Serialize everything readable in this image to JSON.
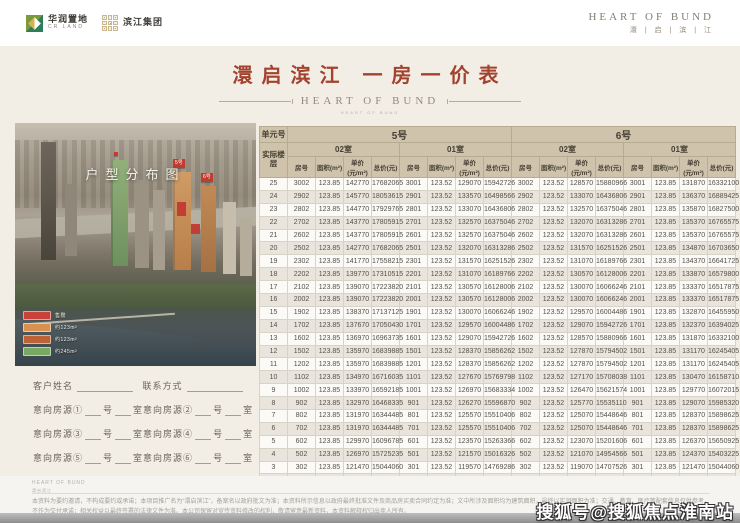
{
  "header": {
    "cr_logo": {
      "title": "华润置地",
      "subtitle": "CR LAND"
    },
    "partner_logo": {
      "title": "滨江集团"
    },
    "brand": {
      "en": "HEART OF BUND",
      "cn": "澴 | 启 | 滨 | 江"
    }
  },
  "title": "澴启滨江 一房一价表",
  "subtitle_en": "HEART OF BUND",
  "photo": {
    "overlay_title": "户型分布图",
    "badges": [
      "5号",
      "6号"
    ],
    "legend": [
      {
        "color": "#c8423a",
        "label": "售罄"
      },
      {
        "color": "#d9914f",
        "label": "约123m²"
      },
      {
        "color": "#bc6234",
        "label": "约123m²"
      },
      {
        "color": "#79a862",
        "label": "约245m²"
      }
    ]
  },
  "form": {
    "name_label": "客户姓名",
    "contact_label": "联系方式",
    "intent_labels": [
      "意向房源①",
      "意向房源②",
      "意向房源③",
      "意向房源④",
      "意向房源⑤",
      "意向房源⑥"
    ],
    "unit_suffix": "号",
    "room_suffix": "室",
    "consultant_label": "置业顾问"
  },
  "table": {
    "corner": "单元号",
    "floor_header": "实际楼层",
    "buildings": [
      "5号",
      "6号"
    ],
    "units": [
      "02室",
      "01室",
      "02室",
      "01室"
    ],
    "cols": [
      "房号",
      "面积(m²)",
      "单价(元/m²)",
      "总价(元)"
    ],
    "rows": [
      {
        "floor": "25",
        "cells": [
          "3002",
          "123.85",
          "142770",
          "17682065",
          "3001",
          "123.52",
          "129070",
          "15942726",
          "3002",
          "123.52",
          "128570",
          "15880966",
          "3001",
          "123.85",
          "131870",
          "16332100"
        ]
      },
      {
        "floor": "24",
        "cells": [
          "2902",
          "123.85",
          "145770",
          "18053615",
          "2901",
          "123.52",
          "133570",
          "16498566",
          "2902",
          "123.52",
          "133070",
          "16436806",
          "2901",
          "123.85",
          "136370",
          "16889425"
        ]
      },
      {
        "floor": "23",
        "cells": [
          "2802",
          "123.85",
          "144770",
          "17929765",
          "2801",
          "123.52",
          "133070",
          "16436806",
          "2802",
          "123.52",
          "132570",
          "16375046",
          "2801",
          "123.85",
          "135870",
          "16827500"
        ]
      },
      {
        "floor": "22",
        "cells": [
          "2702",
          "123.85",
          "143770",
          "17805915",
          "2701",
          "123.52",
          "132570",
          "16375046",
          "2702",
          "123.52",
          "132070",
          "16313286",
          "2701",
          "123.85",
          "135370",
          "16765575"
        ]
      },
      {
        "floor": "21",
        "cells": [
          "2602",
          "123.85",
          "143770",
          "17805915",
          "2601",
          "123.52",
          "132570",
          "16375046",
          "2602",
          "123.52",
          "132070",
          "16313286",
          "2601",
          "123.85",
          "135370",
          "16765575"
        ]
      },
      {
        "floor": "20",
        "cells": [
          "2502",
          "123.85",
          "142770",
          "17682065",
          "2501",
          "123.52",
          "132070",
          "16313286",
          "2502",
          "123.52",
          "131570",
          "16251526",
          "2501",
          "123.85",
          "134870",
          "16703650"
        ]
      },
      {
        "floor": "19",
        "cells": [
          "2302",
          "123.85",
          "141770",
          "17558215",
          "2301",
          "123.52",
          "131570",
          "16251526",
          "2302",
          "123.52",
          "131070",
          "16189766",
          "2301",
          "123.85",
          "134370",
          "16641725"
        ]
      },
      {
        "floor": "18",
        "cells": [
          "2202",
          "123.85",
          "139770",
          "17310515",
          "2201",
          "123.52",
          "131070",
          "16189766",
          "2202",
          "123.52",
          "130570",
          "16128006",
          "2201",
          "123.85",
          "133870",
          "16579800"
        ]
      },
      {
        "floor": "17",
        "cells": [
          "2102",
          "123.85",
          "139070",
          "17223820",
          "2101",
          "123.52",
          "130570",
          "16128006",
          "2102",
          "123.52",
          "130070",
          "16066246",
          "2101",
          "123.85",
          "133370",
          "16517875"
        ]
      },
      {
        "floor": "16",
        "cells": [
          "2002",
          "123.85",
          "139070",
          "17223820",
          "2001",
          "123.52",
          "130570",
          "16128006",
          "2002",
          "123.52",
          "130070",
          "16066246",
          "2001",
          "123.85",
          "133370",
          "16517875"
        ]
      },
      {
        "floor": "15",
        "cells": [
          "1902",
          "123.85",
          "138370",
          "17137125",
          "1901",
          "123.52",
          "130070",
          "16066246",
          "1902",
          "123.52",
          "129570",
          "16004486",
          "1901",
          "123.85",
          "132870",
          "16455950"
        ]
      },
      {
        "floor": "14",
        "cells": [
          "1702",
          "123.85",
          "137670",
          "17050430",
          "1701",
          "123.52",
          "129570",
          "16004486",
          "1702",
          "123.52",
          "129070",
          "15942726",
          "1701",
          "123.85",
          "132370",
          "16394025"
        ]
      },
      {
        "floor": "13",
        "cells": [
          "1602",
          "123.85",
          "136970",
          "16963735",
          "1601",
          "123.52",
          "129070",
          "15942726",
          "1602",
          "123.52",
          "128570",
          "15880966",
          "1601",
          "123.85",
          "131870",
          "16332100"
        ]
      },
      {
        "floor": "12",
        "cells": [
          "1502",
          "123.85",
          "135970",
          "16839885",
          "1501",
          "123.52",
          "128370",
          "15856262",
          "1502",
          "123.52",
          "127870",
          "15794502",
          "1501",
          "123.85",
          "131170",
          "16245405"
        ]
      },
      {
        "floor": "11",
        "cells": [
          "1202",
          "123.85",
          "135970",
          "16839885",
          "1201",
          "123.52",
          "128370",
          "15856262",
          "1202",
          "123.52",
          "127870",
          "15794502",
          "1201",
          "123.85",
          "131170",
          "16245405"
        ]
      },
      {
        "floor": "10",
        "cells": [
          "1102",
          "123.85",
          "134970",
          "16716035",
          "1101",
          "123.52",
          "127670",
          "15769798",
          "1102",
          "123.52",
          "127170",
          "15708038",
          "1101",
          "123.85",
          "130470",
          "16158710"
        ]
      },
      {
        "floor": "9",
        "cells": [
          "1002",
          "123.85",
          "133970",
          "16592185",
          "1001",
          "123.52",
          "126970",
          "15683334",
          "1002",
          "123.52",
          "126470",
          "15621574",
          "1001",
          "123.85",
          "129770",
          "16072015"
        ]
      },
      {
        "floor": "8",
        "cells": [
          "902",
          "123.85",
          "132970",
          "16468335",
          "901",
          "123.52",
          "126270",
          "15596870",
          "902",
          "123.52",
          "125770",
          "15535110",
          "901",
          "123.85",
          "129070",
          "15985320"
        ]
      },
      {
        "floor": "7",
        "cells": [
          "802",
          "123.85",
          "131970",
          "16344485",
          "801",
          "123.52",
          "125570",
          "15510406",
          "802",
          "123.52",
          "125070",
          "15448646",
          "801",
          "123.85",
          "128370",
          "15898625"
        ]
      },
      {
        "floor": "6",
        "cells": [
          "702",
          "123.85",
          "131970",
          "16344485",
          "701",
          "123.52",
          "125570",
          "15510406",
          "702",
          "123.52",
          "125070",
          "15448646",
          "701",
          "123.85",
          "128370",
          "15898625"
        ]
      },
      {
        "floor": "5",
        "cells": [
          "602",
          "123.85",
          "129970",
          "16096785",
          "601",
          "123.52",
          "123570",
          "15263366",
          "602",
          "123.52",
          "123070",
          "15201606",
          "601",
          "123.85",
          "126370",
          "15650925"
        ]
      },
      {
        "floor": "4",
        "cells": [
          "502",
          "123.85",
          "126970",
          "15725235",
          "501",
          "123.52",
          "121570",
          "15016326",
          "502",
          "123.52",
          "121070",
          "14954566",
          "501",
          "123.85",
          "124370",
          "15403225"
        ]
      },
      {
        "floor": "3",
        "cells": [
          "302",
          "123.85",
          "121470",
          "15044060",
          "301",
          "123.52",
          "119570",
          "14769286",
          "302",
          "123.52",
          "119070",
          "14707526",
          "301",
          "123.85",
          "121470",
          "15044060"
        ]
      },
      {
        "floor": "2",
        "cells": [
          "202",
          "123.85",
          "115983",
          "14364488",
          "201",
          "123.52",
          "114570",
          "14151686",
          "202",
          "123.52",
          "113570",
          "14028166",
          "201",
          "123.85",
          "115970",
          "14362885"
        ]
      }
    ],
    "footer_floor": "1",
    "footer_note": "架空层高约8m"
  },
  "footer": {
    "micro_line1": "HEART OF BUND",
    "micro_line2": "澴启滨江",
    "disclaimer": "本资料为要约邀请，不构成要约或承诺；本项目推广名为“澴启滨江”，备案名以政府批文为准；本资料所示信息以政府最终批准文件及商品房买卖合同约定为准；文中所涉及面积均为建筑面积，最终以实测面积为准；交通、教育、医疗等配套信息仅供参考，不作为交付承诺；相关权益以最终签署的法律文件为准。本公司保留对宣传资料修改的权利，敬请留意最新资料，本资料解释权归出卖人所有。"
  },
  "watermark": "搜狐号@搜狐焦点淮南站",
  "colors": {
    "title_accent": "#a3422e",
    "table_header_bg": "#cfc3ab",
    "badge_red": "#c23a30"
  }
}
